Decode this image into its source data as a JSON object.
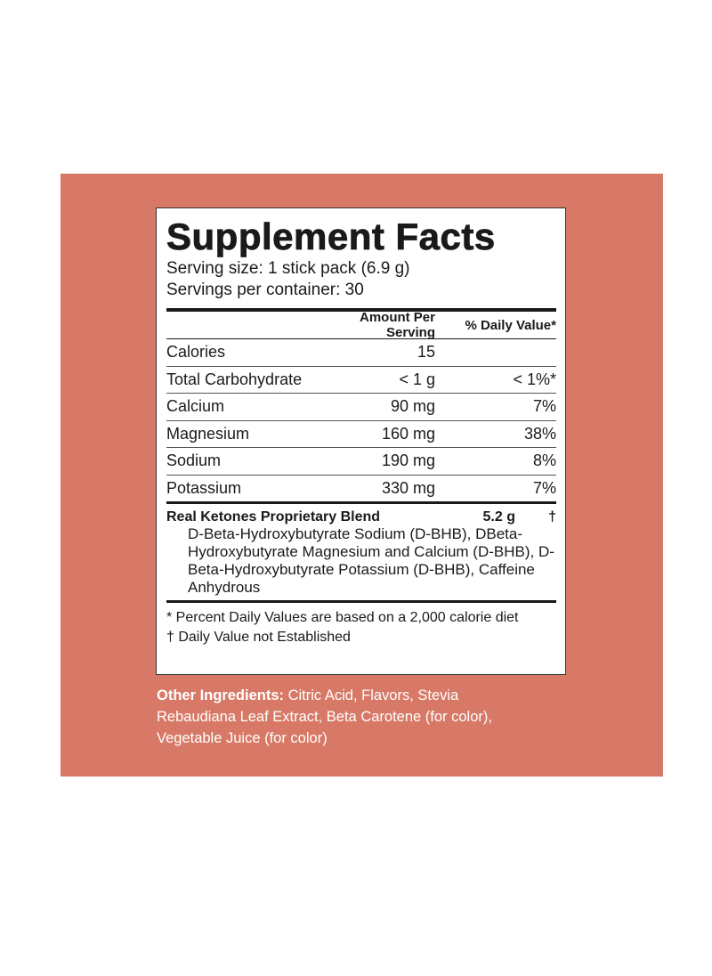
{
  "title": "Supplement Facts",
  "serving_size": "Serving size: 1 stick pack (6.9 g)",
  "servings_per_container": "Servings per container: 30",
  "columns": {
    "amount": "Amount Per Serving",
    "dv": "% Daily Value*"
  },
  "rows": [
    {
      "name": "Calories",
      "amount": "15",
      "dv": ""
    },
    {
      "name": "Total Carbohydrate",
      "amount": "< 1 g",
      "dv": "< 1%*"
    },
    {
      "name": "Calcium",
      "amount": "90 mg",
      "dv": "7%"
    },
    {
      "name": "Magnesium",
      "amount": "160 mg",
      "dv": "38%"
    },
    {
      "name": "Sodium",
      "amount": "190 mg",
      "dv": "8%"
    },
    {
      "name": "Potassium",
      "amount": "330 mg",
      "dv": "7%"
    }
  ],
  "blend": {
    "name": "Real Ketones Proprietary Blend",
    "amount": "5.2 g",
    "dv": "†",
    "ingredients": "D-Beta-Hydroxybutyrate Sodium (D-BHB), DBeta-Hydroxybutyrate Magnesium and Calcium (D-BHB), D-Beta-Hydroxybutyrate Potassium (D-BHB), Caffeine Anhydrous"
  },
  "footnotes": [
    "* Percent Daily Values are based on a 2,000 calorie diet",
    "† Daily Value not Established"
  ],
  "other_ingredients": {
    "label": "Other Ingredients:",
    "text": " Citric Acid, Flavors, Stevia Rebaudiana Leaf Extract, Beta Carotene (for color), Vegetable Juice (for color)"
  },
  "colors": {
    "background": "#d77966",
    "label": "#ffffff"
  }
}
